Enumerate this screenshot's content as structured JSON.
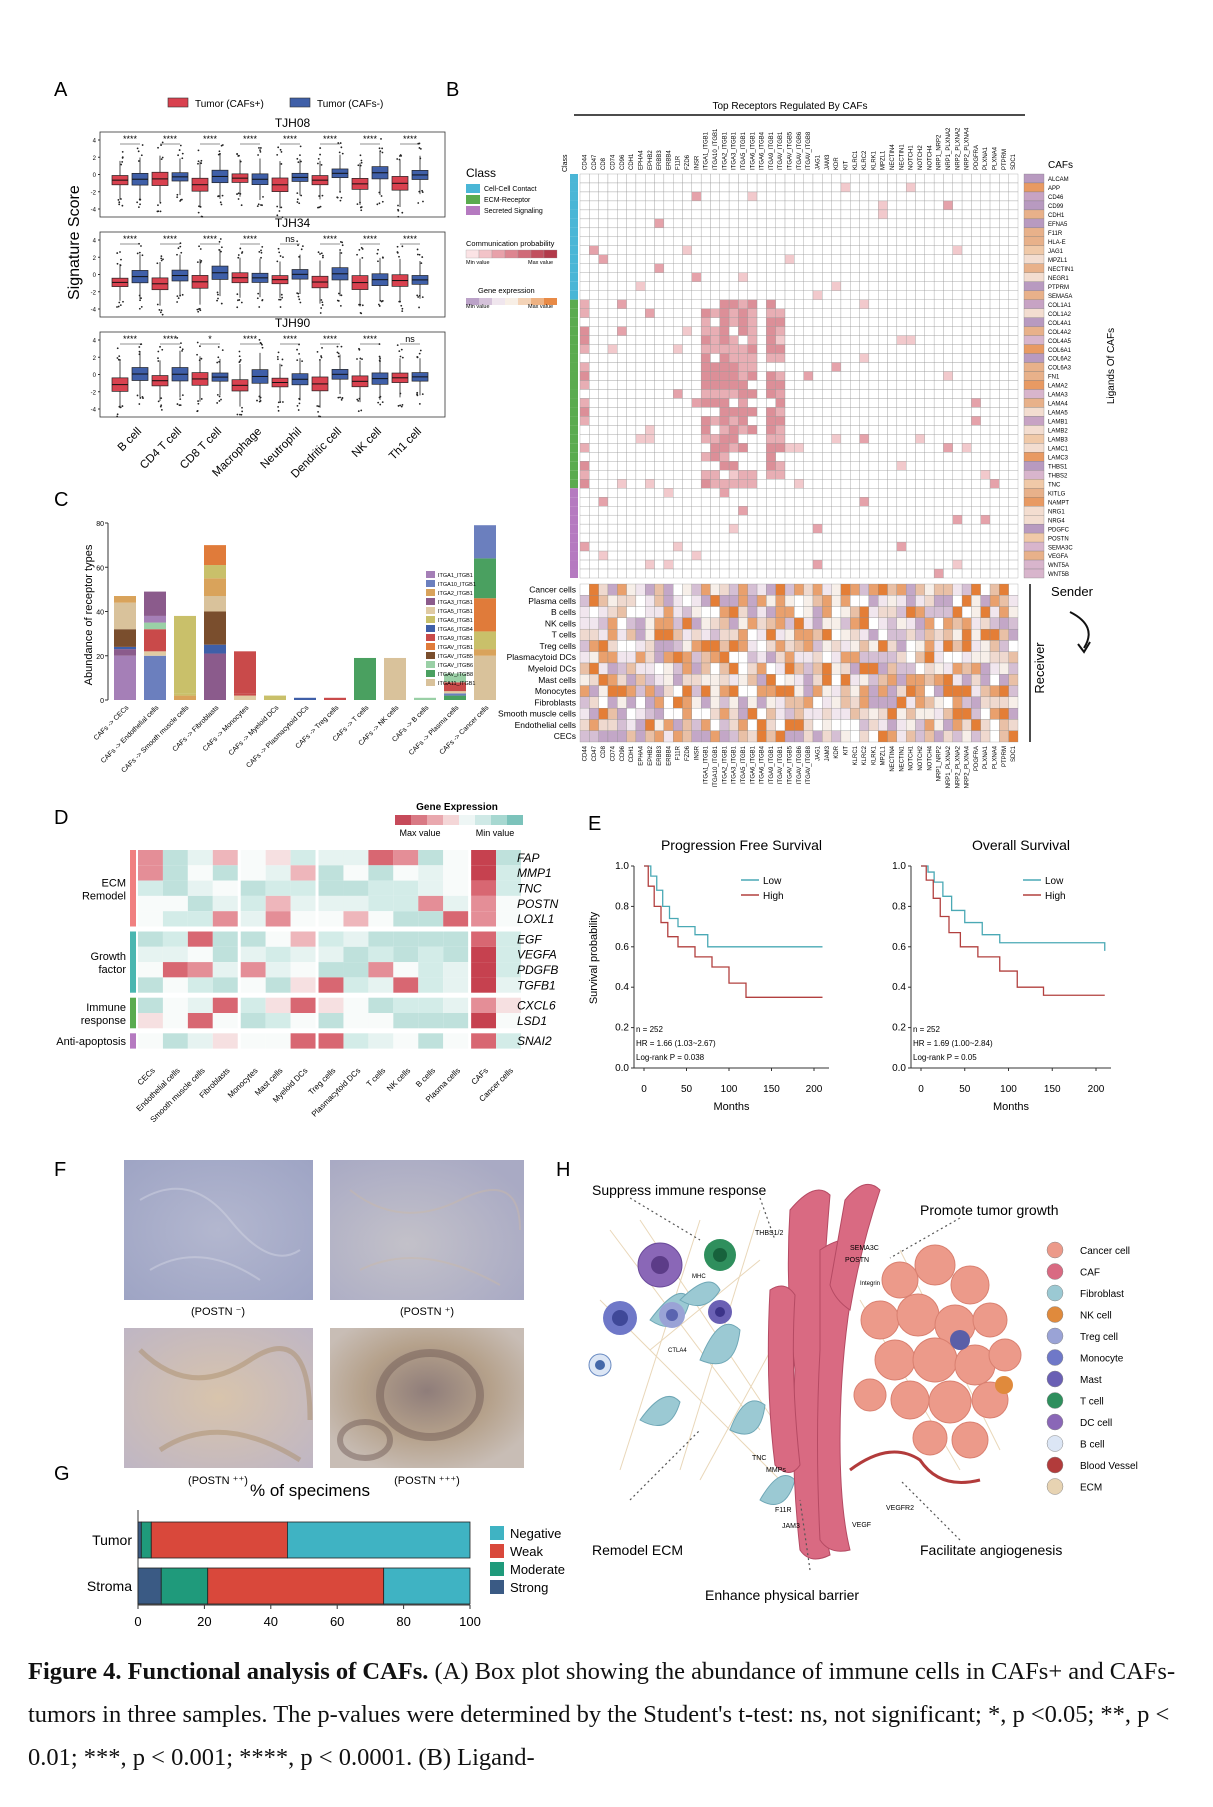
{
  "panels": {
    "A": {
      "letter": "A",
      "legend": [
        "Tumor (CAFs+)",
        "Tumor (CAFs-)"
      ],
      "colors": {
        "pos": "#d9414f",
        "neg": "#3f5fa8"
      },
      "ylabel": "Signature Score",
      "yticks": [
        "4",
        "2",
        "0",
        "-2",
        "-4"
      ],
      "categories": [
        "B cell",
        "CD4 T cell",
        "CD8 T cell",
        "Macrophage",
        "Neutrophil",
        "Dendritic cell",
        "NK cell",
        "Th1 cell"
      ],
      "samples": [
        {
          "name": "TJH08",
          "sig": [
            "****",
            "****",
            "****",
            "****",
            "****",
            "****",
            "****",
            "****"
          ]
        },
        {
          "name": "TJH34",
          "sig": [
            "****",
            "****",
            "****",
            "****",
            "ns",
            "****",
            "****",
            "****"
          ]
        },
        {
          "name": "TJH90",
          "sig": [
            "****",
            "****",
            "*",
            "****",
            "****",
            "****",
            "****",
            "ns"
          ]
        }
      ]
    },
    "B": {
      "letter": "B",
      "title": "Top Receptors Regulated By CAFs",
      "class_title": "Class",
      "class_items": [
        {
          "label": "Cell-Cell Contact",
          "color": "#4ab6d6"
        },
        {
          "label": "ECM-Receptor",
          "color": "#5aab4f"
        },
        {
          "label": "Secreted Signaling",
          "color": "#b57ac0"
        }
      ],
      "prob_title": "Communication probability",
      "prob_min": "Min value",
      "prob_max": "Max value",
      "expr_title": "Gene expression",
      "expr_min": "Min value",
      "expr_max": "Max value",
      "col_class": "Class",
      "cafs_label": "CAFs",
      "ligands_label": "Ligands Of CAFs",
      "sender": "Sender",
      "receiver": "Receiver",
      "receptors": [
        "CD44",
        "CD47",
        "CD8",
        "CD74",
        "CD96",
        "CDH1",
        "EPHA4",
        "EPHB2",
        "ERBB3",
        "ERBB4",
        "F11R",
        "FZD6",
        "INSR",
        "ITGA1_ITGB1",
        "ITGA10_ITGB1",
        "ITGA2_ITGB1",
        "ITGA3_ITGB1",
        "ITGA5_ITGB1",
        "ITGA6_ITGB1",
        "ITGA6_ITGB4",
        "ITGA9_ITGB1",
        "ITGAV_ITGB1",
        "ITGAV_ITGB5",
        "ITGAV_ITGB6",
        "ITGAV_ITGB8",
        "JAG1",
        "JAM3",
        "KDR",
        "KIT",
        "KLRC1",
        "KLRC2",
        "KLRK1",
        "MPZL1",
        "NECTIN4",
        "NECTIN1",
        "NOTCH1",
        "NOTCH2",
        "NOTCH4",
        "NRP1_NRP2",
        "NRP1_PLXNA2",
        "NRP2_PLXNA2",
        "NRP2_PLXNA4",
        "PDGFRA",
        "PLXNA1",
        "PLXNA4",
        "PTPRM",
        "SDC1"
      ],
      "ligands": [
        "ALCAM",
        "APP",
        "CD46",
        "CD99",
        "CDH1",
        "EFNA5",
        "F11R",
        "HLA-E",
        "JAG1",
        "MPZL1",
        "NECTIN1",
        "NEGR1",
        "PTPRM",
        "SEMA5A",
        "COL1A1",
        "COL1A2",
        "COL4A1",
        "COL4A2",
        "COL4A5",
        "COL6A1",
        "COL6A2",
        "COL6A3",
        "FN1",
        "LAMA2",
        "LAMA3",
        "LAMA4",
        "LAMA5",
        "LAMB1",
        "LAMB2",
        "LAMB3",
        "LAMC1",
        "LAMC3",
        "THBS1",
        "THBS2",
        "TNC",
        "KITLG",
        "NAMPT",
        "NRG1",
        "NRG4",
        "PDGFC",
        "POSTN",
        "SEMA3C",
        "VEGFA",
        "WNT5A",
        "WNT5B"
      ],
      "cell_types": [
        "Cancer cells",
        "Plasma cells",
        "B cells",
        "NK cells",
        "T cells",
        "Treg cells",
        "Plasmacytoid DCs",
        "Myeloid DCs",
        "Mast cells",
        "Monocytes",
        "Fibroblasts",
        "Smooth muscle cells",
        "Endothelial cells",
        "CECs"
      ]
    },
    "C": {
      "letter": "C",
      "ylabel": "Abundance of receptor types",
      "yticks": [
        "80",
        "60",
        "40",
        "20",
        "0"
      ],
      "categories": [
        "CAFs -> CECs",
        "CAFs -> Endothelial cells",
        "CAFs -> Smooth muscle cells",
        "CAFs -> Fibroblasts",
        "CAFs -> Monocytes",
        "CAFs -> Myeloid DCs",
        "CAFs -> Plasmacytoid DCs",
        "CAFs -> Treg cells",
        "CAFs -> T cells",
        "CAFs -> NK cells",
        "CAFs -> B cells",
        "CAFs -> Plasma cells",
        "CAFs -> Cancer cells"
      ],
      "legend": [
        "ITGA1_ITGB1",
        "ITGA10_ITGB1",
        "ITGA2_ITGB1",
        "ITGA3_ITGB1",
        "ITGA5_ITGB1",
        "ITGA6_ITGB1",
        "ITGA6_ITGB4",
        "ITGA9_ITGB1",
        "ITGAV_ITGB1",
        "ITGAV_ITGB5",
        "ITGAV_ITGB6",
        "ITGAV_ITGB8",
        "ITGA11_ITGB1"
      ]
    },
    "D": {
      "letter": "D",
      "legend_title": "Gene Expression",
      "legend_max": "Max value",
      "legend_min": "Min value",
      "groups": [
        {
          "label": "ECM\nRemodel",
          "l1": "ECM",
          "l2": "Remodel",
          "genes": [
            "FAP",
            "MMP1",
            "TNC",
            "POSTN",
            "LOXL1"
          ],
          "color": "#f08080"
        },
        {
          "label": "Growth factor",
          "l1": "Growth",
          "l2": "factor",
          "genes": [
            "EGF",
            "VEGFA",
            "PDGFB",
            "TGFB1"
          ],
          "color": "#4ab6b0"
        },
        {
          "label": "Immune response",
          "l1": "Immune",
          "l2": "response",
          "genes": [
            "CXCL6",
            "LSD1"
          ],
          "color": "#5aab4f"
        },
        {
          "label": "Anti-apoptosis",
          "l1": "Anti-apoptosis",
          "l2": "",
          "genes": [
            "SNAI2"
          ],
          "color": "#b57ac0"
        }
      ],
      "cells": [
        "CECs",
        "Endothelial cells",
        "Smooth muscle cells",
        "Fibroblasts",
        "Monocytes",
        "Mast cells",
        "Myeloid DCs",
        "Treg cells",
        "Plasmacytoid DCs",
        "T cells",
        "NK cells",
        "B cells",
        "Plasma cells",
        "CAFs",
        "Cancer cells"
      ]
    },
    "E": {
      "letter": "E",
      "ylabel": "Survival probability",
      "xlabel": "Months",
      "xticks": [
        "0",
        "50",
        "100",
        "150",
        "200"
      ],
      "yticks": [
        "1.0",
        "0.8",
        "0.6",
        "0.4",
        "0.2",
        "0.0"
      ],
      "legend": [
        "Low",
        "High"
      ],
      "colors": {
        "low": "#4aa9b5",
        "high": "#b2403f"
      },
      "plots": [
        {
          "title": "Progression Free Survival",
          "n": "n = 252",
          "hr": "HR = 1.66 (1.03~2.67)",
          "p": "Log-rank P = 0.038"
        },
        {
          "title": "Overall Survival",
          "n": "n = 252",
          "hr": "HR = 1.69 (1.00~2.84)",
          "p": "Log-rank P = 0.05"
        }
      ]
    },
    "F": {
      "letter": "F",
      "labels": [
        "(POSTN ⁻)",
        "(POSTN ⁺)",
        "(POSTN ⁺⁺)",
        "(POSTN ⁺⁺⁺)"
      ]
    },
    "G": {
      "letter": "G",
      "title": "% of specimens",
      "xticks": [
        "0",
        "20",
        "40",
        "60",
        "80",
        "100"
      ],
      "rows": [
        {
          "name": "Tumor",
          "strong": 1,
          "moderate": 3,
          "weak": 41,
          "negative": 55
        },
        {
          "name": "Stroma",
          "strong": 7,
          "moderate": 14,
          "weak": 53,
          "negative": 26
        }
      ],
      "legend": [
        "Negative",
        "Weak",
        "Moderate",
        "Strong"
      ],
      "colors": {
        "Negative": "#3fb3c3",
        "Weak": "#d9483b",
        "Moderate": "#1f9a7b",
        "Strong": "#3a5a84"
      }
    },
    "H": {
      "letter": "H",
      "labels": {
        "suppress": "Suppress immune response",
        "promote": "Promote tumor growth",
        "remodel": "Remodel ECM",
        "angio": "Facilitate angiogenesis",
        "barrier": "Enhance physical barrier",
        "thbs": "THBS1/2",
        "sema": "SEMA3C",
        "postn": "POSTN",
        "mhc": "MHC",
        "ctla": "CTLA4",
        "tnc": "TNC",
        "mmps": "MMPs",
        "f11r": "F11R",
        "jam": "JAM3",
        "vegfr": "VEGFR2",
        "vegf": "VEGF",
        "integrin": "Integrin"
      },
      "legend": [
        "Cancer cell",
        "CAF",
        "Fibroblast",
        "NK cell",
        "Treg cell",
        "Monocyte",
        "Mast",
        "T cell",
        "DC cell",
        "B cell",
        "Blood Vessel",
        "ECM"
      ]
    }
  },
  "caption": {
    "bold": "Figure 4. Functional analysis of CAFs.",
    "text": " (A) Box plot showing the abundance of immune cells in CAFs+ and CAFs- tumors in three samples. The p-values were determined by the Student's t-test: ns, not significant; *, p <0.05; **, p < 0.01; ***, p < 0.001; ****, p < 0.0001. (B) Ligand-"
  }
}
